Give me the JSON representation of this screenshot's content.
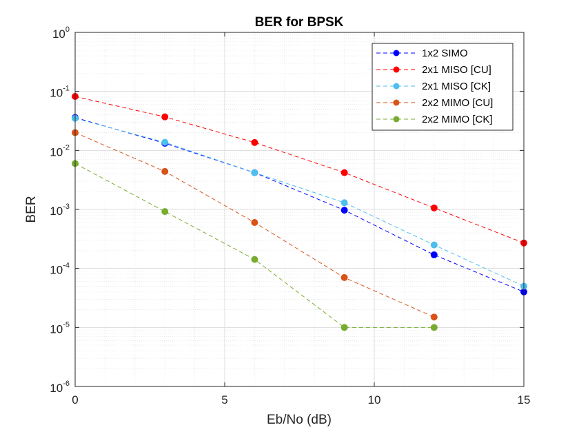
{
  "chart_data": {
    "type": "line",
    "title": "BER for BPSK",
    "xlabel": "Eb/No (dB)",
    "ylabel": "BER",
    "xlim": [
      0,
      15
    ],
    "ylim": [
      1e-06,
      1
    ],
    "yscale": "log",
    "grid": true,
    "minor_grid": true,
    "legend_position": "top-right",
    "x_ticks": [
      0,
      5,
      10,
      15
    ],
    "x_tick_labels": [
      "0",
      "5",
      "10",
      "15"
    ],
    "y_ticks": [
      {
        "base": "10",
        "exp": "0",
        "value": 1
      },
      {
        "base": "10",
        "exp": "-1",
        "value": 0.1
      },
      {
        "base": "10",
        "exp": "-2",
        "value": 0.01
      },
      {
        "base": "10",
        "exp": "-3",
        "value": 0.001
      },
      {
        "base": "10",
        "exp": "-4",
        "value": 0.0001
      },
      {
        "base": "10",
        "exp": "-5",
        "value": 1e-05
      },
      {
        "base": "10",
        "exp": "-6",
        "value": 1e-06
      }
    ],
    "x": [
      0,
      3,
      6,
      9,
      12,
      15
    ],
    "series": [
      {
        "name": "1x2 SIMO",
        "color": "#0000ff",
        "x": [
          0,
          3,
          6,
          9,
          12,
          15
        ],
        "values": [
          0.036,
          0.0132,
          0.0042,
          0.00097,
          0.00017,
          4e-05
        ]
      },
      {
        "name": "2x1 MISO [CU]",
        "color": "#ff0000",
        "x": [
          0,
          3,
          6,
          9,
          12,
          15
        ],
        "values": [
          0.082,
          0.037,
          0.0136,
          0.0042,
          0.00106,
          0.00027
        ]
      },
      {
        "name": "2x1 MISO [CK]",
        "color": "#4dbeee",
        "x": [
          0,
          3,
          6,
          9,
          12,
          15
        ],
        "values": [
          0.035,
          0.0137,
          0.0042,
          0.0013,
          0.00025,
          5e-05
        ]
      },
      {
        "name": "2x2 MIMO [CU]",
        "color": "#d95319",
        "x": [
          0,
          3,
          6,
          9,
          12
        ],
        "values": [
          0.02,
          0.0044,
          0.0006,
          7e-05,
          1.5e-05
        ]
      },
      {
        "name": "2x2 MIMO [CK]",
        "color": "#77ac30",
        "x": [
          0,
          3,
          6,
          9,
          12
        ],
        "values": [
          0.006,
          0.00092,
          0.000142,
          1e-05,
          1e-05
        ]
      }
    ]
  }
}
